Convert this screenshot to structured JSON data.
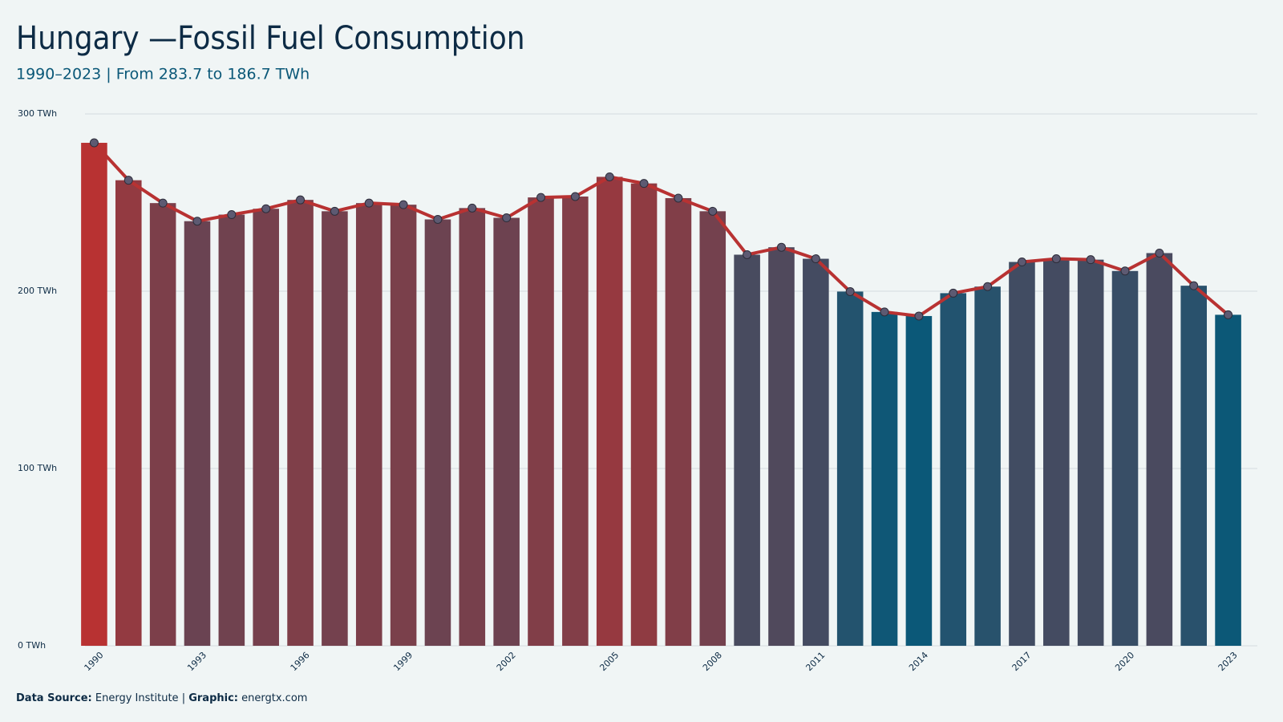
{
  "chart_data": {
    "type": "bar-line",
    "title": "Hungary —Fossil Fuel Consumption",
    "subtitle": "1990–2023 | From 283.7 to 186.7 TWh",
    "footer": {
      "source_label": "Data Source:",
      "source": "Energy Institute",
      "separator": "|",
      "graphic_label": "Graphic:",
      "graphic": "energtx.com"
    },
    "categories": [
      "1990",
      null,
      null,
      "1993",
      null,
      null,
      "1996",
      null,
      null,
      "1999",
      null,
      null,
      "2002",
      null,
      null,
      "2005",
      null,
      null,
      "2008",
      null,
      null,
      "2011",
      null,
      null,
      "2014",
      null,
      null,
      "2017",
      null,
      null,
      "2020",
      null,
      null,
      "2023"
    ],
    "values": [
      283.7,
      262.6,
      249.7,
      239.5,
      243.2,
      246.5,
      251.5,
      245.1,
      249.7,
      248.8,
      240.5,
      246.9,
      241.4,
      252.9,
      253.4,
      264.5,
      260.8,
      252.5,
      245.1,
      220.6,
      224.8,
      218.3,
      199.8,
      188.3,
      186.0,
      198.9,
      202.6,
      216.5,
      218.3,
      217.8,
      211.4,
      221.5,
      203.1,
      186.7
    ],
    "color_scale": [
      "#0b5878",
      "#b83232"
    ],
    "line_color": "#b83232",
    "marker_color": "#5d5a72",
    "ylim": [
      0,
      300
    ],
    "yticks": [
      {
        "value": 0,
        "label": "0 TWh"
      },
      {
        "value": 100,
        "label": "100 TWh"
      },
      {
        "value": 200,
        "label": "200 TWh"
      },
      {
        "value": 300,
        "label": "300 TWh"
      }
    ],
    "grid": true
  }
}
